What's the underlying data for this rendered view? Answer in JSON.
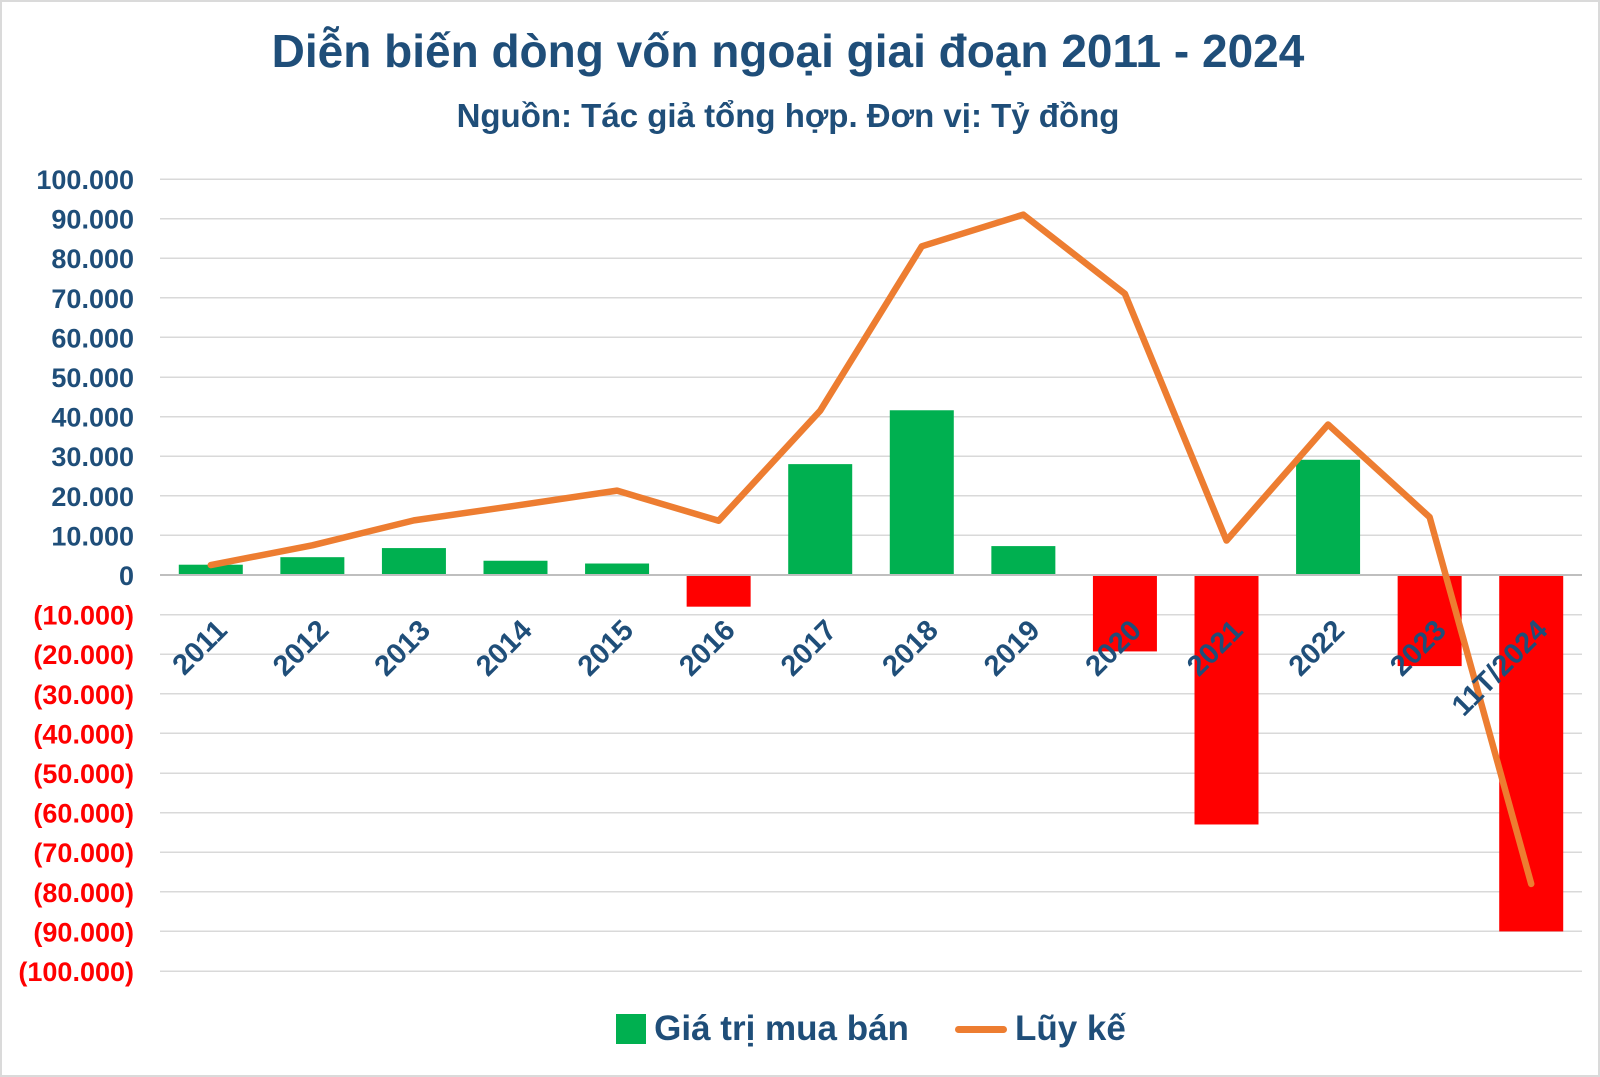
{
  "chart": {
    "title": "Diễn biến dòng vốn ngoại giai đoạn 2011 - 2024",
    "subtitle": "Nguồn: Tác giả tổng hợp. Đơn vị: Tỷ đồng",
    "legend": {
      "bar_label": "Giá trị mua bán",
      "line_label": "Lũy kế"
    }
  },
  "colors": {
    "bar_positive": "#00B050",
    "bar_negative": "#FF0000",
    "line": "#ED7D31",
    "text_navy": "#1F4E79",
    "tick_negative": "#FF0000",
    "gridline": "#D9D9D9",
    "axis_line": "#BFBFBF",
    "background": "#FFFFFF"
  },
  "chart_data": {
    "type": "bar",
    "subtype": "combo bar+line",
    "title": "Diễn biến dòng vốn ngoại giai đoạn 2011 - 2024",
    "subtitle": "Nguồn: Tác giả tổng hợp. Đơn vị: Tỷ đồng",
    "unit": "Tỷ đồng",
    "categories": [
      "2011",
      "2012",
      "2013",
      "2014",
      "2015",
      "2016",
      "2017",
      "2018",
      "2019",
      "2020",
      "2021",
      "2022",
      "2023",
      "11T/2024"
    ],
    "series": [
      {
        "name": "Giá trị mua bán",
        "type": "bar",
        "values": [
          2600,
          4500,
          6800,
          3600,
          2900,
          -8000,
          28000,
          41600,
          7300,
          -19300,
          -63000,
          29100,
          -23000,
          -90000
        ]
      },
      {
        "name": "Lũy kế",
        "type": "line",
        "values": [
          2500,
          7500,
          13800,
          17500,
          21300,
          13700,
          41500,
          83000,
          91000,
          71000,
          8700,
          38000,
          14600,
          -78000
        ]
      }
    ],
    "ylim": [
      -100000,
      100000
    ],
    "y_tick_step": 10000,
    "grid": true,
    "legend_position": "bottom",
    "x_label_rotation_deg": -45,
    "y_ticks": [
      {
        "value": 100000,
        "label": "100.000"
      },
      {
        "value": 90000,
        "label": "90.000"
      },
      {
        "value": 80000,
        "label": "80.000"
      },
      {
        "value": 70000,
        "label": "70.000"
      },
      {
        "value": 60000,
        "label": "60.000"
      },
      {
        "value": 50000,
        "label": "50.000"
      },
      {
        "value": 40000,
        "label": "40.000"
      },
      {
        "value": 30000,
        "label": "30.000"
      },
      {
        "value": 20000,
        "label": "20.000"
      },
      {
        "value": 10000,
        "label": "10.000"
      },
      {
        "value": 0,
        "label": "0"
      },
      {
        "value": -10000,
        "label": "(10.000)"
      },
      {
        "value": -20000,
        "label": "(20.000)"
      },
      {
        "value": -30000,
        "label": "(30.000)"
      },
      {
        "value": -40000,
        "label": "(40.000)"
      },
      {
        "value": -50000,
        "label": "(50.000)"
      },
      {
        "value": -60000,
        "label": "(60.000)"
      },
      {
        "value": -70000,
        "label": "(70.000)"
      },
      {
        "value": -80000,
        "label": "(80.000)"
      },
      {
        "value": -90000,
        "label": "(90.000)"
      },
      {
        "value": -100000,
        "label": "(100.000)"
      }
    ]
  }
}
